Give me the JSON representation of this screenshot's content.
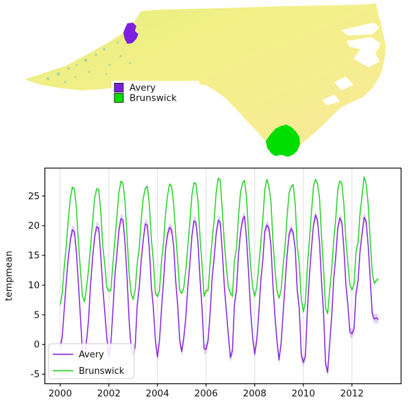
{
  "figure": {
    "background": "#ffffff"
  },
  "map": {
    "legend": {
      "items": [
        {
          "label": "Avery",
          "color": "#7d1fe0"
        },
        {
          "label": "Brunswick",
          "color": "#00dd00"
        }
      ],
      "swatch_border": "#222222",
      "background": "#ffffff"
    },
    "fill": {
      "west": "#e6ee7c",
      "center": "#f3f08a",
      "east": "#f7ec92",
      "south": "#f8e49b",
      "water": "#ffffff",
      "terrain_speckle": "#7fc4bb"
    }
  },
  "chart_data": {
    "type": "line",
    "title": "",
    "xlabel": "",
    "ylabel": "tempmean",
    "x_ticks": [
      2000,
      2002,
      2004,
      2006,
      2008,
      2010,
      2012
    ],
    "y_ticks": [
      -5,
      0,
      5,
      10,
      15,
      20,
      25
    ],
    "xlim": [
      1999.37,
      2014.02
    ],
    "ylim": [
      -6.6,
      29.7
    ],
    "grid": "vertical",
    "gridline_color": "#dcdcdc",
    "legend_position": "lower left",
    "x_start_year": 2000,
    "x_step": "monthly",
    "series": [
      {
        "name": "Avery",
        "color": "#8a2be2",
        "band_halfwidth": 0.8,
        "values": [
          -0.4,
          1.2,
          6.0,
          10.5,
          14.6,
          17.6,
          19.3,
          19.0,
          15.6,
          10.2,
          4.6,
          -1.2,
          -2.6,
          0.6,
          4.2,
          10.1,
          14.6,
          18.1,
          19.8,
          19.6,
          15.2,
          9.6,
          5.6,
          1.2,
          -2.0,
          0.2,
          5.6,
          11.6,
          15.2,
          19.2,
          21.2,
          20.9,
          17.1,
          11.2,
          4.2,
          -0.6,
          -1.6,
          -0.4,
          6.6,
          9.6,
          14.2,
          17.6,
          20.3,
          20.1,
          16.1,
          9.7,
          6.1,
          0.6,
          -2.1,
          0.6,
          6.1,
          10.6,
          16.1,
          18.6,
          19.7,
          19.3,
          16.6,
          10.7,
          6.6,
          0.7,
          -1.2,
          1.1,
          4.6,
          9.7,
          13.6,
          18.2,
          20.8,
          20.6,
          17.2,
          11.1,
          6.2,
          -0.7,
          -0.8,
          0.7,
          5.2,
          11.2,
          14.7,
          18.7,
          20.9,
          20.6,
          15.7,
          9.8,
          5.7,
          1.6,
          -2.2,
          -1.1,
          6.7,
          9.2,
          15.2,
          18.8,
          21.0,
          21.6,
          17.6,
          12.1,
          5.6,
          1.1,
          -1.6,
          0.7,
          5.1,
          10.7,
          14.2,
          19.1,
          20.1,
          19.6,
          16.7,
          10.1,
          4.7,
          0.6,
          -2.6,
          0.1,
          5.1,
          10.2,
          15.1,
          18.6,
          19.5,
          18.8,
          16.1,
          9.2,
          6.1,
          -1.8,
          -3.0,
          -2.0,
          5.6,
          11.6,
          16.1,
          20.1,
          21.8,
          20.9,
          17.1,
          10.6,
          5.1,
          -3.2,
          -4.7,
          0.2,
          4.7,
          11.1,
          14.7,
          19.6,
          21.3,
          20.6,
          16.2,
          10.2,
          6.6,
          2.1,
          1.8,
          2.6,
          8.6,
          10.7,
          15.7,
          18.7,
          21.4,
          20.7,
          16.6,
          11.2,
          5.2,
          4.3,
          4.5,
          4.2
        ]
      },
      {
        "name": "Brunswick",
        "color": "#2bd42b",
        "band_halfwidth": 0.3,
        "values": [
          6.7,
          8.6,
          13.1,
          16.6,
          21.1,
          24.6,
          26.5,
          26.1,
          23.1,
          17.1,
          12.6,
          8.1,
          7.2,
          9.6,
          12.6,
          16.6,
          20.6,
          24.6,
          26.2,
          26.1,
          22.6,
          16.6,
          13.6,
          9.6,
          9.0,
          9.1,
          13.6,
          17.6,
          21.6,
          25.6,
          27.5,
          27.1,
          24.1,
          18.1,
          12.1,
          8.6,
          7.6,
          9.1,
          13.6,
          16.1,
          21.1,
          24.6,
          26.3,
          26.6,
          23.6,
          17.6,
          14.1,
          8.6,
          8.1,
          9.1,
          14.1,
          17.1,
          22.1,
          25.1,
          27.0,
          26.6,
          23.6,
          18.6,
          14.1,
          9.1,
          8.6,
          9.6,
          12.6,
          16.6,
          20.6,
          25.1,
          27.2,
          27.1,
          24.1,
          18.1,
          13.6,
          8.1,
          9.1,
          9.1,
          13.6,
          17.6,
          21.1,
          25.6,
          28.0,
          27.6,
          22.6,
          17.1,
          13.1,
          9.6,
          8.7,
          8.1,
          14.1,
          16.1,
          21.6,
          25.6,
          27.2,
          27.6,
          24.6,
          18.6,
          13.1,
          9.6,
          8.1,
          9.6,
          13.1,
          17.1,
          21.1,
          26.1,
          27.8,
          26.6,
          24.1,
          17.6,
          12.6,
          9.1,
          7.8,
          9.1,
          13.1,
          16.6,
          21.6,
          25.6,
          26.6,
          26.9,
          23.6,
          16.6,
          13.6,
          7.6,
          5.5,
          7.1,
          13.1,
          17.6,
          22.1,
          26.6,
          27.8,
          27.1,
          24.6,
          18.1,
          12.6,
          6.1,
          5.2,
          9.1,
          12.6,
          17.6,
          21.1,
          26.1,
          27.5,
          27.1,
          23.6,
          17.6,
          13.6,
          10.1,
          9.2,
          10.1,
          15.6,
          17.1,
          22.1,
          25.1,
          28.2,
          27.1,
          23.6,
          17.6,
          12.1,
          10.3,
          10.8,
          11.0
        ]
      }
    ]
  }
}
